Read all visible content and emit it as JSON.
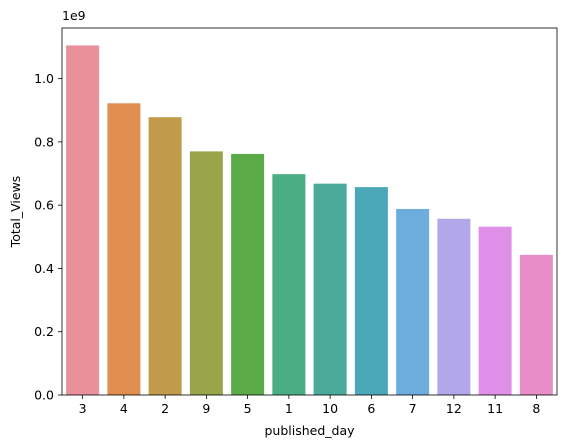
{
  "chart_data": {
    "type": "bar",
    "categories": [
      "3",
      "4",
      "2",
      "9",
      "5",
      "1",
      "10",
      "6",
      "7",
      "12",
      "11",
      "8"
    ],
    "values": [
      1105000000,
      922000000,
      878000000,
      770000000,
      762000000,
      698000000,
      668000000,
      657000000,
      588000000,
      557000000,
      532000000,
      443000000
    ],
    "colors": [
      "#e9919b",
      "#e08e4f",
      "#c19a4a",
      "#9aa44a",
      "#5aab47",
      "#4aad84",
      "#4aab9b",
      "#4aa8b8",
      "#6cadde",
      "#b2a7e9",
      "#e08fe8",
      "#e78dc8"
    ],
    "xlabel": "published_day",
    "ylabel": "Total_Views",
    "ylim": [
      0,
      1160000000
    ],
    "y_ticks": [
      0,
      200000000,
      400000000,
      600000000,
      800000000,
      1000000000
    ],
    "y_tick_labels": [
      "0.0",
      "0.2",
      "0.4",
      "0.6",
      "0.8",
      "1.0"
    ],
    "y_offset_label": "1e9",
    "grid": false,
    "legend": "none"
  }
}
